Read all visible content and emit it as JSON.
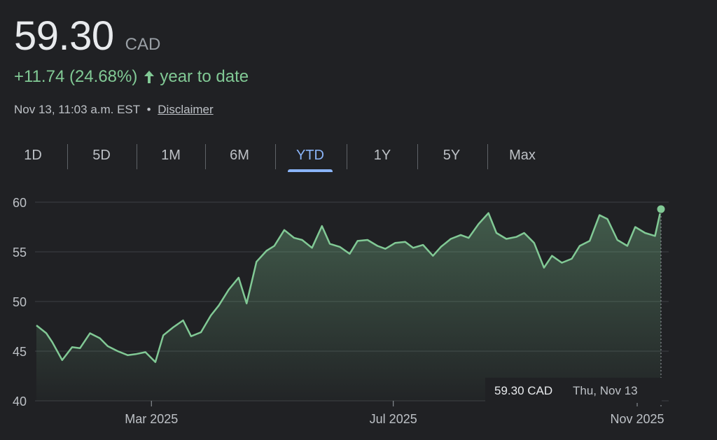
{
  "quote": {
    "price": "59.30",
    "currency": "CAD",
    "change": "+11.74 (24.68%)",
    "period": "year to date",
    "timestamp": "Nov 13, 11:03 a.m. EST",
    "separator": "•",
    "disclaimer": "Disclaimer",
    "up_color": "#81c995"
  },
  "tabs": [
    {
      "label": "1D",
      "active": false
    },
    {
      "label": "5D",
      "active": false
    },
    {
      "label": "1M",
      "active": false
    },
    {
      "label": "6M",
      "active": false
    },
    {
      "label": "YTD",
      "active": true
    },
    {
      "label": "1Y",
      "active": false
    },
    {
      "label": "5Y",
      "active": false
    },
    {
      "label": "Max",
      "active": false
    }
  ],
  "tooltip": {
    "value": "59.30 CAD",
    "date": "Thu, Nov 13"
  },
  "chart_data": {
    "type": "area",
    "ylim": [
      40,
      60
    ],
    "yticks": [
      "60",
      "55",
      "50",
      "45",
      "40"
    ],
    "xticks": [
      "Mar 2025",
      "Jul 2025",
      "Nov 2025"
    ],
    "xlim": [
      "2025-01-02",
      "2025-11-13"
    ],
    "grid": true,
    "line_color": "#81c995",
    "x": [
      "2025-01-02",
      "2025-01-07",
      "2025-01-10",
      "2025-01-15",
      "2025-01-20",
      "2025-01-24",
      "2025-01-29",
      "2025-02-03",
      "2025-02-07",
      "2025-02-12",
      "2025-02-17",
      "2025-02-21",
      "2025-02-26",
      "2025-03-03",
      "2025-03-07",
      "2025-03-12",
      "2025-03-17",
      "2025-03-21",
      "2025-03-26",
      "2025-03-31",
      "2025-04-04",
      "2025-04-09",
      "2025-04-14",
      "2025-04-18",
      "2025-04-23",
      "2025-04-28",
      "2025-05-02",
      "2025-05-07",
      "2025-05-12",
      "2025-05-16",
      "2025-05-21",
      "2025-05-26",
      "2025-05-30",
      "2025-06-04",
      "2025-06-09",
      "2025-06-13",
      "2025-06-18",
      "2025-06-23",
      "2025-06-27",
      "2025-07-02",
      "2025-07-07",
      "2025-07-11",
      "2025-07-16",
      "2025-07-21",
      "2025-07-25",
      "2025-07-30",
      "2025-08-04",
      "2025-08-08",
      "2025-08-13",
      "2025-08-18",
      "2025-08-22",
      "2025-08-27",
      "2025-09-01",
      "2025-09-05",
      "2025-09-10",
      "2025-09-15",
      "2025-09-19",
      "2025-09-24",
      "2025-09-29",
      "2025-10-03",
      "2025-10-08",
      "2025-10-13",
      "2025-10-17",
      "2025-10-22",
      "2025-10-27",
      "2025-10-31",
      "2025-11-05",
      "2025-11-10",
      "2025-11-13"
    ],
    "values": [
      47.6,
      46.8,
      45.9,
      44.1,
      45.4,
      45.3,
      46.8,
      46.3,
      45.5,
      45.0,
      44.6,
      44.7,
      44.9,
      43.9,
      46.6,
      47.4,
      48.1,
      46.5,
      46.9,
      48.6,
      49.6,
      51.2,
      52.4,
      49.8,
      54.0,
      55.1,
      55.6,
      57.2,
      56.4,
      56.2,
      55.4,
      57.6,
      55.8,
      55.5,
      54.8,
      56.1,
      56.2,
      55.6,
      55.3,
      55.9,
      56.0,
      55.4,
      55.7,
      54.6,
      55.5,
      56.3,
      56.7,
      56.4,
      57.8,
      58.9,
      56.9,
      56.3,
      56.5,
      56.9,
      55.9,
      53.4,
      54.6,
      53.9,
      54.3,
      55.6,
      56.1,
      58.7,
      58.3,
      56.2,
      55.6,
      57.5,
      56.9,
      56.6,
      59.3
    ]
  }
}
